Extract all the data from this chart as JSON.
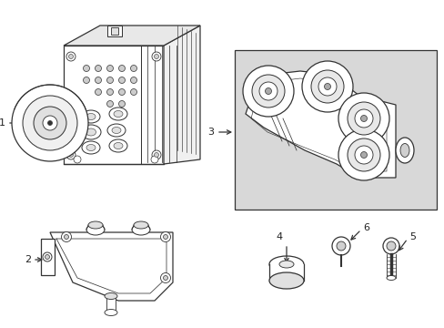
{
  "bg_color": "#ffffff",
  "line_color": "#333333",
  "label_color": "#222222",
  "box_bg": "#d8d8d8",
  "figsize": [
    4.89,
    3.6
  ],
  "dpi": 100
}
